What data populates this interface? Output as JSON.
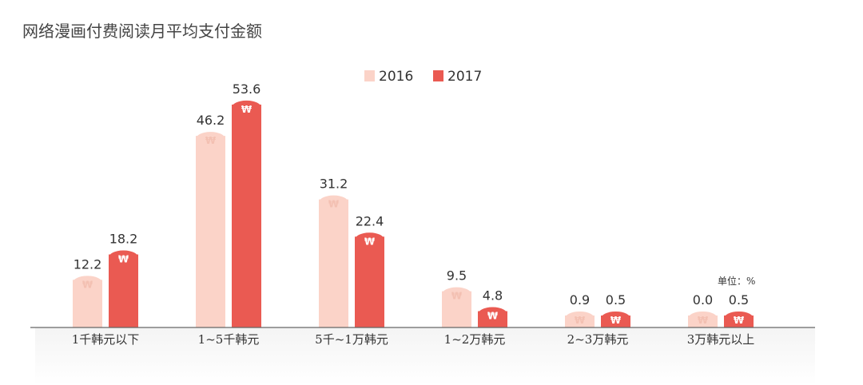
{
  "chart_data": {
    "type": "bar",
    "title": "网络漫画付费阅读月平均支付金额",
    "unit": "单位：%",
    "categories": [
      "1千韩元以下",
      "1~5千韩元",
      "5千~1万韩元",
      "1~2万韩元",
      "2~3万韩元",
      "3万韩元以上"
    ],
    "series": [
      {
        "name": "2016",
        "values": [
          12.2,
          46.2,
          31.2,
          9.5,
          0.9,
          0.0
        ]
      },
      {
        "name": "2017",
        "values": [
          18.2,
          53.6,
          22.4,
          4.8,
          0.5,
          0.5
        ]
      }
    ],
    "ylim": [
      0,
      60
    ],
    "grid": false,
    "legend": "top-center",
    "bar_symbol": "₩",
    "colors": {
      "2016": "#fbd3c8",
      "2017": "#ea5a52"
    }
  }
}
